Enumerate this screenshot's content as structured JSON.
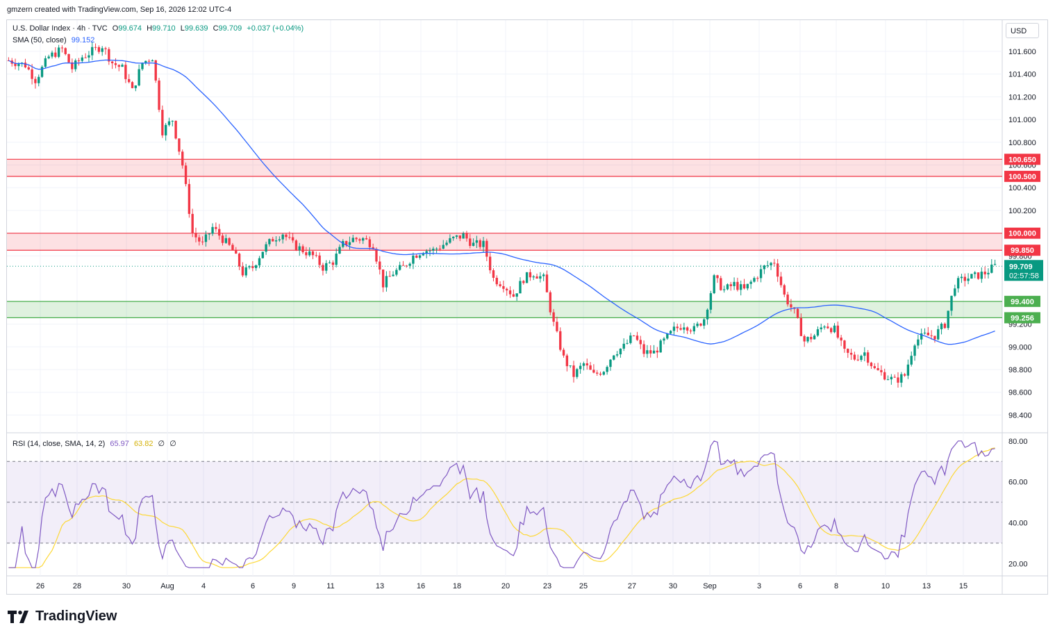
{
  "header": {
    "note": "gmzern created with TradingView.com, Sep 16, 2026 12:02 UTC-4"
  },
  "legend": {
    "symbol": "U.S. Dollar Index · 4h · TVC",
    "o_label": "O",
    "o_value": "99.674",
    "h_label": "H",
    "h_value": "99.710",
    "l_label": "L",
    "l_value": "99.639",
    "c_label": "C",
    "c_value": "99.709",
    "change": "+0.037 (+0.04%)",
    "sma_label": "SMA (50, close)",
    "sma_value": "99.152",
    "rsi_label": "RSI (14, close, SMA, 14, 2)",
    "rsi_value": "65.97",
    "rsi_ma_value": "63.82",
    "rsi_extra1": "∅",
    "rsi_extra2": "∅"
  },
  "currency_button": "USD",
  "brand": {
    "name": "TradingView",
    "logo_icon": "tradingview-logo-icon"
  },
  "colors": {
    "up": "#089981",
    "down": "#f23645",
    "sma": "#2962ff",
    "rsi": "#7e57c2",
    "rsi_ma": "#fdd835",
    "resistance": "#f23645",
    "support": "#4caf50"
  },
  "chart_data": {
    "type": "candlestick",
    "title": "U.S. Dollar Index · 4h · TVC",
    "interval": "4h",
    "price_axis": {
      "ticks": [
        "101.600",
        "101.400",
        "101.200",
        "101.000",
        "100.800",
        "100.600",
        "100.400",
        "100.200",
        "100.000",
        "99.800",
        "99.200",
        "99.000",
        "98.800",
        "98.600",
        "98.400"
      ],
      "range": [
        98.25,
        101.85
      ]
    },
    "time_axis": {
      "ticks": [
        "26",
        "28",
        "30",
        "Aug",
        "4",
        "6",
        "9",
        "11",
        "13",
        "16",
        "18",
        "20",
        "23",
        "25",
        "27",
        "30",
        "Sep",
        "3",
        "6",
        "8",
        "10",
        "13",
        "15"
      ]
    },
    "zones": [
      {
        "type": "resistance",
        "high": 100.65,
        "low": 100.5,
        "high_label": "100.650",
        "low_label": "100.500"
      },
      {
        "type": "resistance",
        "high": 100.0,
        "low": 99.85,
        "high_label": "100.000",
        "low_label": "99.850"
      },
      {
        "type": "support",
        "high": 99.4,
        "low": 99.256,
        "high_label": "99.400",
        "low_label": "99.256"
      }
    ],
    "last_price": {
      "value": 99.709,
      "label": "99.709",
      "countdown": "02:57:58"
    },
    "price_path": [
      [
        0,
        101.52
      ],
      [
        5,
        101.48
      ],
      [
        8,
        101.35
      ],
      [
        12,
        101.55
      ],
      [
        16,
        101.62
      ],
      [
        19,
        101.45
      ],
      [
        22,
        101.55
      ],
      [
        25,
        101.6
      ],
      [
        28,
        101.65
      ],
      [
        31,
        101.5
      ],
      [
        34,
        101.45
      ],
      [
        37,
        101.25
      ],
      [
        40,
        101.5
      ],
      [
        43,
        101.55
      ],
      [
        46,
        100.9
      ],
      [
        49,
        101.0
      ],
      [
        52,
        100.6
      ],
      [
        55,
        100.0
      ],
      [
        58,
        99.9
      ],
      [
        61,
        100.05
      ],
      [
        64,
        99.95
      ],
      [
        67,
        99.85
      ],
      [
        70,
        99.65
      ],
      [
        73,
        99.7
      ],
      [
        76,
        99.85
      ],
      [
        79,
        99.95
      ],
      [
        82,
        100.0
      ],
      [
        85,
        99.9
      ],
      [
        88,
        99.85
      ],
      [
        91,
        99.8
      ],
      [
        94,
        99.7
      ],
      [
        97,
        99.75
      ],
      [
        100,
        99.9
      ],
      [
        103,
        99.95
      ],
      [
        106,
        99.95
      ],
      [
        109,
        99.9
      ],
      [
        112,
        99.55
      ],
      [
        115,
        99.65
      ],
      [
        118,
        99.7
      ],
      [
        121,
        99.8
      ],
      [
        124,
        99.85
      ],
      [
        127,
        99.85
      ],
      [
        130,
        99.9
      ],
      [
        133,
        99.95
      ],
      [
        136,
        99.98
      ],
      [
        139,
        99.9
      ],
      [
        142,
        99.9
      ],
      [
        145,
        99.6
      ],
      [
        148,
        99.55
      ],
      [
        151,
        99.45
      ],
      [
        154,
        99.6
      ],
      [
        157,
        99.65
      ],
      [
        160,
        99.6
      ],
      [
        163,
        99.2
      ],
      [
        166,
        98.9
      ],
      [
        169,
        98.75
      ],
      [
        172,
        98.85
      ],
      [
        175,
        98.75
      ],
      [
        178,
        98.8
      ],
      [
        181,
        98.95
      ],
      [
        184,
        99.0
      ],
      [
        187,
        99.1
      ],
      [
        190,
        98.95
      ],
      [
        193,
        98.95
      ],
      [
        196,
        99.05
      ],
      [
        199,
        99.15
      ],
      [
        202,
        99.2
      ],
      [
        205,
        99.15
      ],
      [
        208,
        99.25
      ],
      [
        211,
        99.6
      ],
      [
        214,
        99.5
      ],
      [
        217,
        99.55
      ],
      [
        220,
        99.5
      ],
      [
        223,
        99.6
      ],
      [
        226,
        99.7
      ],
      [
        229,
        99.75
      ],
      [
        232,
        99.45
      ],
      [
        235,
        99.3
      ],
      [
        238,
        99.05
      ],
      [
        241,
        99.1
      ],
      [
        244,
        99.2
      ],
      [
        247,
        99.15
      ],
      [
        250,
        98.95
      ],
      [
        253,
        98.9
      ],
      [
        256,
        98.95
      ],
      [
        259,
        98.8
      ],
      [
        262,
        98.75
      ],
      [
        265,
        98.7
      ],
      [
        268,
        98.75
      ],
      [
        271,
        99.05
      ],
      [
        274,
        99.1
      ],
      [
        277,
        99.1
      ],
      [
        280,
        99.2
      ],
      [
        283,
        99.55
      ],
      [
        286,
        99.6
      ],
      [
        289,
        99.62
      ],
      [
        292,
        99.65
      ],
      [
        295,
        99.71
      ]
    ],
    "sma": {
      "name": "SMA (50, close)",
      "last": 99.152
    },
    "rsi": {
      "name": "RSI (14, close, SMA, 14, 2)",
      "value": 65.97,
      "ma_value": 63.82,
      "levels": [
        70,
        50,
        30
      ],
      "axis_ticks": [
        "80.00",
        "60.00",
        "40.00",
        "20.00"
      ],
      "range": [
        14,
        84
      ]
    }
  }
}
